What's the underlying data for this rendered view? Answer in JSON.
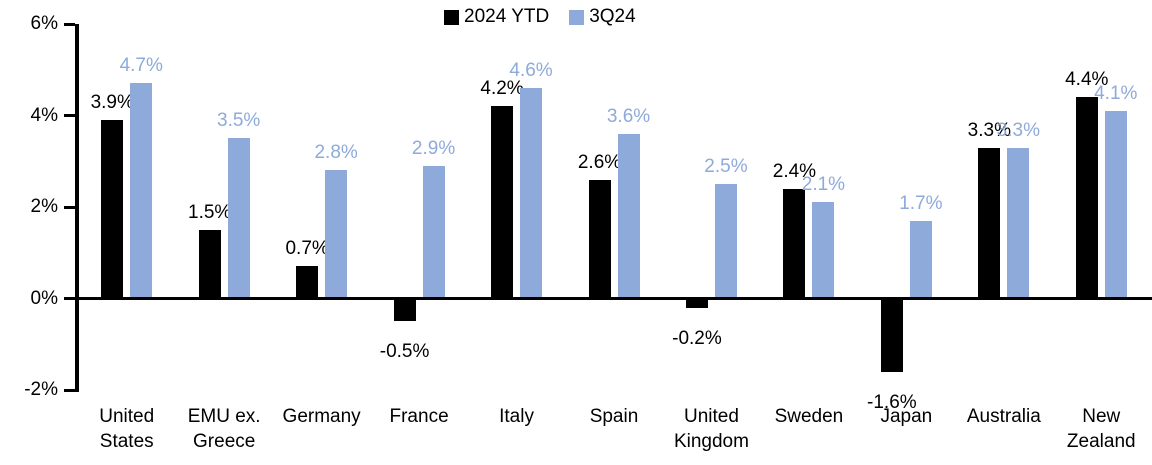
{
  "chart_data": {
    "type": "bar",
    "title": "",
    "categories": [
      "United States",
      "EMU ex. Greece",
      "Germany",
      "France",
      "Italy",
      "Spain",
      "United Kingdom",
      "Sweden",
      "Japan",
      "Australia",
      "New Zealand"
    ],
    "series": [
      {
        "name": "2024 YTD",
        "color": "#000000",
        "values": [
          3.9,
          1.5,
          0.7,
          -0.5,
          4.2,
          2.6,
          -0.2,
          2.4,
          -1.6,
          3.3,
          4.4
        ],
        "labels": [
          "3.9%",
          "1.5%",
          "0.7%",
          "-0.5%",
          "4.2%",
          "2.6%",
          "-0.2%",
          "2.4%",
          "-1.6%",
          "3.3%",
          "4.4%"
        ]
      },
      {
        "name": "3Q24",
        "color": "#8EAADB",
        "values": [
          4.7,
          3.5,
          2.8,
          2.9,
          4.6,
          3.6,
          2.5,
          2.1,
          1.7,
          3.3,
          4.1
        ],
        "labels": [
          "4.7%",
          "3.5%",
          "2.8%",
          "2.9%",
          "4.6%",
          "3.6%",
          "2.5%",
          "2.1%",
          "1.7%",
          "3.3%",
          "4.1%"
        ]
      }
    ],
    "ylim": [
      -2,
      6
    ],
    "yticks": [
      6,
      4,
      2,
      0,
      -2
    ],
    "y_tick_labels": [
      "6%",
      "4%",
      "2%",
      "0%",
      "-2%"
    ],
    "xlabel": "",
    "ylabel": "",
    "grid": false,
    "legend_position": "top-center",
    "background_color": "#FFFFFF",
    "axis_color": "#000000"
  }
}
